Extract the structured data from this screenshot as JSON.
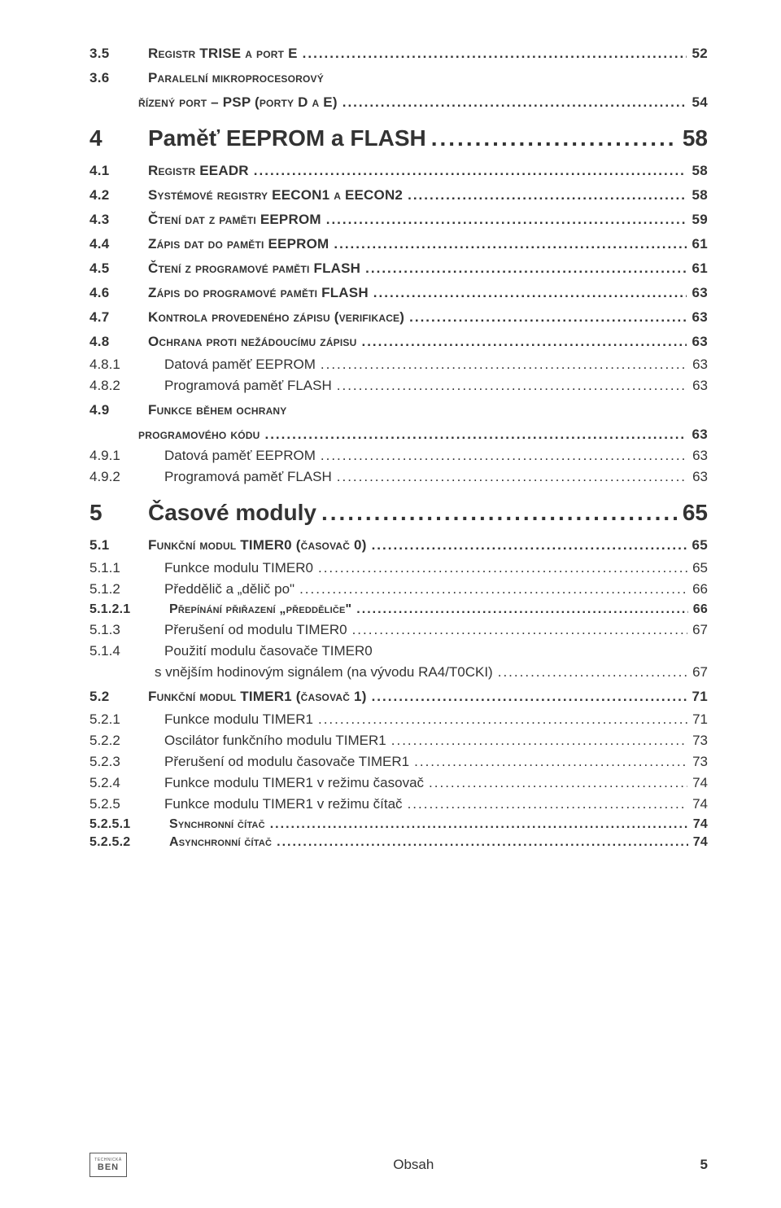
{
  "colors": {
    "text": "#333333",
    "bg": "#ffffff"
  },
  "entries": [
    {
      "lvl": "h2",
      "num": "3.5",
      "title": "Registr TRISE a port E",
      "page": "52"
    },
    {
      "lvl": "h2",
      "num": "3.6",
      "title": "Paralelní mikroprocesorový",
      "wrap": "řízený port – PSP (porty D a E)",
      "page": "54"
    },
    {
      "lvl": "h1",
      "num": "4",
      "title": "Paměť EEPROM a FLASH",
      "page": "58"
    },
    {
      "lvl": "h2",
      "num": "4.1",
      "title": "Registr EEADR",
      "page": "58"
    },
    {
      "lvl": "h2",
      "num": "4.2",
      "title": "Systémové registry EECON1 a EECON2",
      "page": "58"
    },
    {
      "lvl": "h2",
      "num": "4.3",
      "title": "Čtení dat z paměti EEPROM",
      "page": "59"
    },
    {
      "lvl": "h2",
      "num": "4.4",
      "title": "Zápis dat do paměti EEPROM",
      "page": "61"
    },
    {
      "lvl": "h2",
      "num": "4.5",
      "title": "Čtení z programové paměti FLASH",
      "page": "61"
    },
    {
      "lvl": "h2",
      "num": "4.6",
      "title": "Zápis do  programové paměti FLASH",
      "page": "63"
    },
    {
      "lvl": "h2",
      "num": "4.7",
      "title": "Kontrola provedeného zápisu (verifikace)",
      "page": "63"
    },
    {
      "lvl": "h2",
      "num": "4.8",
      "title": "Ochrana proti nežádoucímu zápisu",
      "page": "63"
    },
    {
      "lvl": "h3",
      "num": "4.8.1",
      "title": "Datová paměť EEPROM",
      "page": "63"
    },
    {
      "lvl": "h3",
      "num": "4.8.2",
      "title": "Programová paměť FLASH",
      "page": "63"
    },
    {
      "lvl": "h2",
      "num": "4.9",
      "title": "Funkce během ochrany",
      "wrap": "programového kódu",
      "page": "63"
    },
    {
      "lvl": "h3",
      "num": "4.9.1",
      "title": "Datová paměť EEPROM",
      "page": "63"
    },
    {
      "lvl": "h3",
      "num": "4.9.2",
      "title": "Programová paměť FLASH",
      "page": "63"
    },
    {
      "lvl": "h1",
      "num": "5",
      "title": "Časové moduly",
      "page": "65"
    },
    {
      "lvl": "h2",
      "num": "5.1",
      "title": "Funkční modul TIMER0 (časovač 0)",
      "page": "65"
    },
    {
      "lvl": "h3",
      "num": "5.1.1",
      "title": "Funkce modulu TIMER0",
      "page": "65"
    },
    {
      "lvl": "h3",
      "num": "5.1.2",
      "title": "Předdělič a „dělič po\"",
      "page": "66"
    },
    {
      "lvl": "h4",
      "num": "5.1.2.1",
      "title": "Přepínání přiřazení „předděliče\"",
      "page": "66"
    },
    {
      "lvl": "h3",
      "num": "5.1.3",
      "title": "Přerušení od modulu TIMER0",
      "page": "67"
    },
    {
      "lvl": "h3",
      "num": "5.1.4",
      "title": "Použití modulu časovače TIMER0",
      "wrap": "s vnějším hodinovým signálem (na vývodu RA4/T0CKI)",
      "page": "67"
    },
    {
      "lvl": "h2",
      "num": "5.2",
      "title": "Funkční modul TIMER1 (časovač 1)",
      "page": "71"
    },
    {
      "lvl": "h3",
      "num": "5.2.1",
      "title": "Funkce modulu TIMER1",
      "page": "71"
    },
    {
      "lvl": "h3",
      "num": "5.2.2",
      "title": "Oscilátor funkčního modulu TIMER1",
      "page": "73"
    },
    {
      "lvl": "h3",
      "num": "5.2.3",
      "title": "Přerušení od modulu časovače TIMER1",
      "page": "73"
    },
    {
      "lvl": "h3",
      "num": "5.2.4",
      "title": "Funkce modulu TIMER1 v režimu časovač",
      "page": "74"
    },
    {
      "lvl": "h3",
      "num": "5.2.5",
      "title": "Funkce modulu TIMER1 v režimu čítač",
      "page": "74"
    },
    {
      "lvl": "h4",
      "num": "5.2.5.1",
      "title": "Synchronní čítač",
      "page": "74"
    },
    {
      "lvl": "h4",
      "num": "5.2.5.2",
      "title": "Asynchronní čítač",
      "page": "74"
    }
  ],
  "footer": {
    "logo_top": "TECHNICKÁ",
    "logo_main": "BEN",
    "center": "Obsah",
    "page": "5"
  },
  "indent": {
    "h1": 0,
    "h2": 0,
    "h3": 0,
    "h4": 0
  },
  "num_width": {
    "h1": "60px",
    "h2": "60px",
    "h3": "80px",
    "h4": "86px"
  }
}
